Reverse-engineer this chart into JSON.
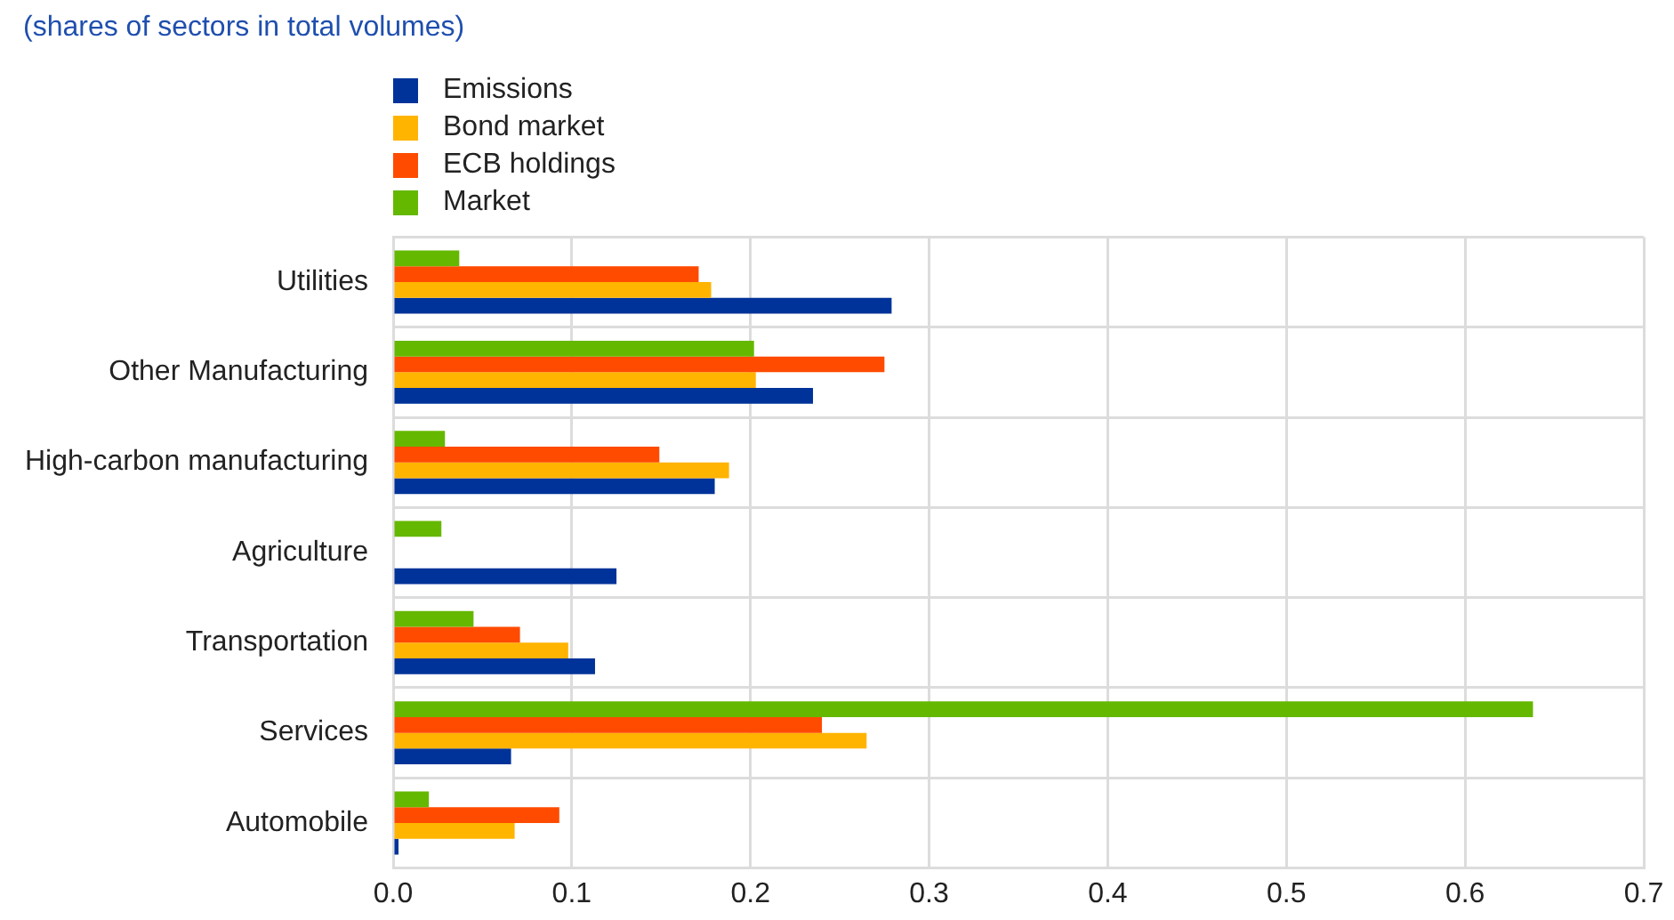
{
  "chart_data": {
    "type": "bar",
    "orientation": "horizontal",
    "title": "(shares of sectors in total volumes)",
    "categories": [
      "Utilities",
      "Other Manufacturing",
      "High-carbon manufacturing",
      "Agriculture",
      "Transportation",
      "Services",
      "Automobile"
    ],
    "series": [
      {
        "name": "Emissions",
        "color": "#003399",
        "values": [
          0.279,
          0.235,
          0.18,
          0.125,
          0.113,
          0.066,
          0.003
        ]
      },
      {
        "name": "Bond market",
        "color": "#ffb400",
        "values": [
          0.178,
          0.203,
          0.188,
          0,
          0.098,
          0.265,
          0.068
        ]
      },
      {
        "name": "ECB holdings",
        "color": "#ff4b00",
        "values": [
          0.171,
          0.275,
          0.149,
          0,
          0.071,
          0.24,
          0.093
        ]
      },
      {
        "name": "Market",
        "color": "#65b800",
        "values": [
          0.037,
          0.202,
          0.029,
          0.027,
          0.045,
          0.638,
          0.02
        ]
      }
    ],
    "xlim": [
      0,
      0.7
    ],
    "xticks": [
      {
        "value": 0,
        "label": "0.0"
      },
      0.1,
      0.2,
      0.3,
      0.4,
      0.5,
      0.6,
      0.7
    ],
    "grid": true,
    "legend": "top left"
  }
}
